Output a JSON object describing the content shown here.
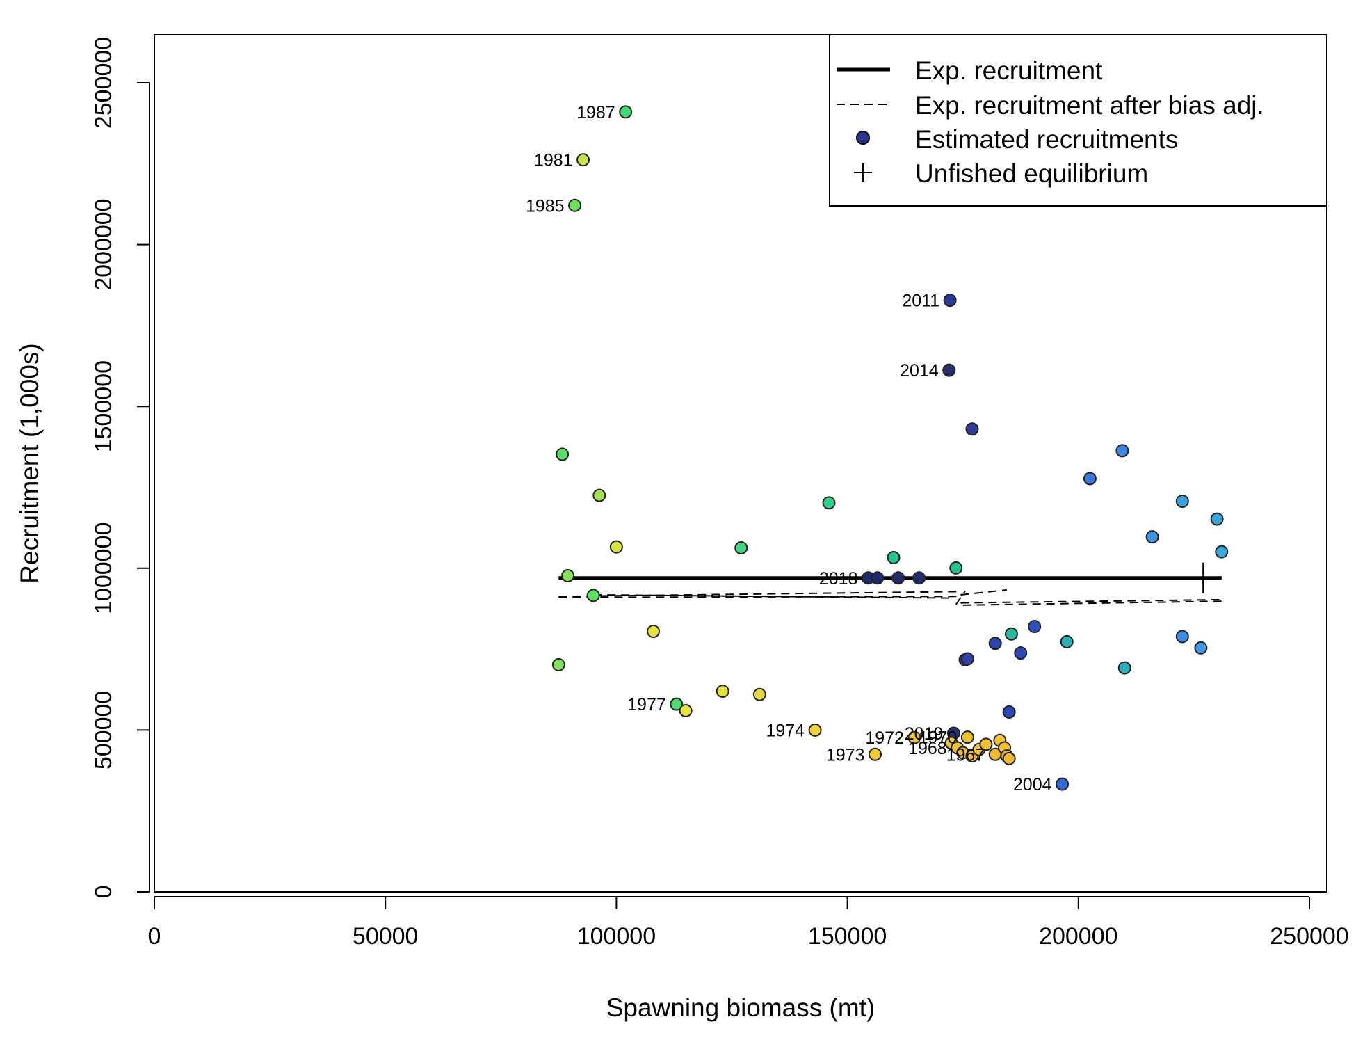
{
  "chart_data": {
    "type": "scatter",
    "title": "",
    "xlabel": "Spawning biomass (mt)",
    "ylabel": "Recruitment (1,000s)",
    "xlim": [
      0,
      255000
    ],
    "ylim": [
      0,
      2650000
    ],
    "x_ticks": [
      0,
      50000,
      100000,
      150000,
      200000,
      250000
    ],
    "y_ticks": [
      0,
      500000,
      1000000,
      1500000,
      2000000,
      2500000
    ],
    "x_tick_labels": [
      "0",
      "50000",
      "100000",
      "150000",
      "200000",
      "250000"
    ],
    "y_tick_labels": [
      "0",
      "500000",
      "1000000",
      "1500000",
      "2000000",
      "2500000"
    ],
    "grid": false,
    "legend_position": "top-right",
    "legend": [
      {
        "label": "Exp. recruitment",
        "kind": "solid-line"
      },
      {
        "label": "Exp. recruitment after bias adj.",
        "kind": "dashed-line"
      },
      {
        "label": "Estimated recruitments",
        "kind": "point"
      },
      {
        "label": "Unfished equilibrium",
        "kind": "plus"
      }
    ],
    "expected_recruitment": {
      "x": [
        87500,
        231000
      ],
      "y": [
        970000,
        970000
      ]
    },
    "bias_adjusted_recruitment": [
      {
        "x": [
          87500,
          174500
        ],
        "y": [
          913000,
          928000
        ]
      },
      {
        "x": [
          87500,
          174500
        ],
        "y": [
          910000,
          913000
        ]
      },
      {
        "x": [
          95000,
          172000
        ],
        "y": [
          918000,
          908000
        ]
      },
      {
        "x": [
          173500,
          175500
        ],
        "y": [
          888000,
          930000
        ]
      },
      {
        "x": [
          174500,
          184500
        ],
        "y": [
          918000,
          933000
        ]
      },
      {
        "x": [
          174500,
          231000
        ],
        "y": [
          893000,
          903000
        ]
      },
      {
        "x": [
          175000,
          231000
        ],
        "y": [
          886000,
          898000
        ]
      }
    ],
    "unfished_equilibrium": {
      "x": 227000,
      "y": 970000
    },
    "points": [
      {
        "x": 102000,
        "y": 2410000,
        "label": "1987",
        "color": "#3fdc72"
      },
      {
        "x": 92800,
        "y": 2262000,
        "label": "1981",
        "color": "#c2e448"
      },
      {
        "x": 91000,
        "y": 2121000,
        "label": "1985",
        "color": "#6ce25a"
      },
      {
        "x": 172200,
        "y": 1828000,
        "label": "2011",
        "color": "#2b3a9b"
      },
      {
        "x": 172000,
        "y": 1612000,
        "label": "2014",
        "color": "#27306e"
      },
      {
        "x": 177000,
        "y": 1430000,
        "label": "",
        "color": "#2f3b96"
      },
      {
        "x": 88300,
        "y": 1352000,
        "label": "",
        "color": "#55de66"
      },
      {
        "x": 96300,
        "y": 1225000,
        "label": "",
        "color": "#a5e252"
      },
      {
        "x": 100000,
        "y": 1066000,
        "label": "",
        "color": "#d7e63c"
      },
      {
        "x": 108000,
        "y": 805000,
        "label": "",
        "color": "#e4e436"
      },
      {
        "x": 89500,
        "y": 977000,
        "label": "",
        "color": "#8be05a"
      },
      {
        "x": 95000,
        "y": 916000,
        "label": "",
        "color": "#5ee062"
      },
      {
        "x": 87500,
        "y": 702000,
        "label": "",
        "color": "#83e05c"
      },
      {
        "x": 113000,
        "y": 580000,
        "label": "1977",
        "color": "#4fdc6c"
      },
      {
        "x": 115000,
        "y": 560000,
        "label": "",
        "color": "#e6e63b"
      },
      {
        "x": 123000,
        "y": 620000,
        "label": "",
        "color": "#e6e23b"
      },
      {
        "x": 127000,
        "y": 1063000,
        "label": "",
        "color": "#42d67d"
      },
      {
        "x": 131000,
        "y": 610000,
        "label": "",
        "color": "#ead93a"
      },
      {
        "x": 143000,
        "y": 500000,
        "label": "1974",
        "color": "#f2d434"
      },
      {
        "x": 146000,
        "y": 1202000,
        "label": "",
        "color": "#2fd08b"
      },
      {
        "x": 156000,
        "y": 425000,
        "label": "1973",
        "color": "#f2cc30"
      },
      {
        "x": 160000,
        "y": 1033000,
        "label": "",
        "color": "#26c48e"
      },
      {
        "x": 154500,
        "y": 970000,
        "label": "2018",
        "color": "#1f2a6a"
      },
      {
        "x": 156500,
        "y": 970000,
        "label": "",
        "color": "#1f2a6a"
      },
      {
        "x": 161000,
        "y": 970000,
        "label": "",
        "color": "#222d6e"
      },
      {
        "x": 165500,
        "y": 970000,
        "label": "",
        "color": "#242f72"
      },
      {
        "x": 173500,
        "y": 1001000,
        "label": "",
        "color": "#22c392"
      },
      {
        "x": 164500,
        "y": 477000,
        "label": "1972",
        "color": "#f2c830"
      },
      {
        "x": 173000,
        "y": 490000,
        "label": "2019",
        "color": "#283278"
      },
      {
        "x": 176000,
        "y": 478000,
        "label": "1970",
        "color": "#f0c22e"
      },
      {
        "x": 172500,
        "y": 460000,
        "label": "",
        "color": "#f2c62f"
      },
      {
        "x": 173800,
        "y": 445000,
        "label": "1968",
        "color": "#f2c22e"
      },
      {
        "x": 175000,
        "y": 430000,
        "label": "",
        "color": "#f0be2e"
      },
      {
        "x": 177000,
        "y": 420000,
        "label": "",
        "color": "#efbd2e"
      },
      {
        "x": 178500,
        "y": 440000,
        "label": "",
        "color": "#f2c12e"
      },
      {
        "x": 180000,
        "y": 456000,
        "label": "",
        "color": "#f2c32e"
      },
      {
        "x": 182000,
        "y": 425000,
        "label": "1967",
        "color": "#f0bc2e"
      },
      {
        "x": 183000,
        "y": 468000,
        "label": "",
        "color": "#f4c62f"
      },
      {
        "x": 184000,
        "y": 445000,
        "label": "",
        "color": "#f2c22e"
      },
      {
        "x": 184500,
        "y": 420000,
        "label": "",
        "color": "#f2bc2e"
      },
      {
        "x": 185000,
        "y": 412000,
        "label": "",
        "color": "#f0b82d"
      },
      {
        "x": 175500,
        "y": 717000,
        "label": "",
        "color": "#2a3aa0"
      },
      {
        "x": 176000,
        "y": 720000,
        "label": "",
        "color": "#2f40a8"
      },
      {
        "x": 182000,
        "y": 768000,
        "label": "",
        "color": "#2e45b0"
      },
      {
        "x": 185500,
        "y": 797000,
        "label": "",
        "color": "#26b89c"
      },
      {
        "x": 185000,
        "y": 556000,
        "label": "",
        "color": "#2c48b8"
      },
      {
        "x": 187500,
        "y": 738000,
        "label": "",
        "color": "#2d47b8"
      },
      {
        "x": 190500,
        "y": 820000,
        "label": "",
        "color": "#3050c0"
      },
      {
        "x": 196500,
        "y": 333000,
        "label": "2004",
        "color": "#3368d8"
      },
      {
        "x": 197500,
        "y": 773000,
        "label": "",
        "color": "#2ab2b6"
      },
      {
        "x": 202500,
        "y": 1277000,
        "label": "",
        "color": "#3a78e0"
      },
      {
        "x": 209500,
        "y": 1363000,
        "label": "",
        "color": "#3f86e4"
      },
      {
        "x": 210000,
        "y": 692000,
        "label": "",
        "color": "#2aaec0"
      },
      {
        "x": 216000,
        "y": 1097000,
        "label": "",
        "color": "#3e94e4"
      },
      {
        "x": 222500,
        "y": 1207000,
        "label": "",
        "color": "#38a2dc"
      },
      {
        "x": 222500,
        "y": 789000,
        "label": "",
        "color": "#3b8ee2"
      },
      {
        "x": 226500,
        "y": 754000,
        "label": "",
        "color": "#3d96e4"
      },
      {
        "x": 230000,
        "y": 1152000,
        "label": "",
        "color": "#36a6dc"
      },
      {
        "x": 231000,
        "y": 1051000,
        "label": "",
        "color": "#34aad8"
      }
    ]
  }
}
